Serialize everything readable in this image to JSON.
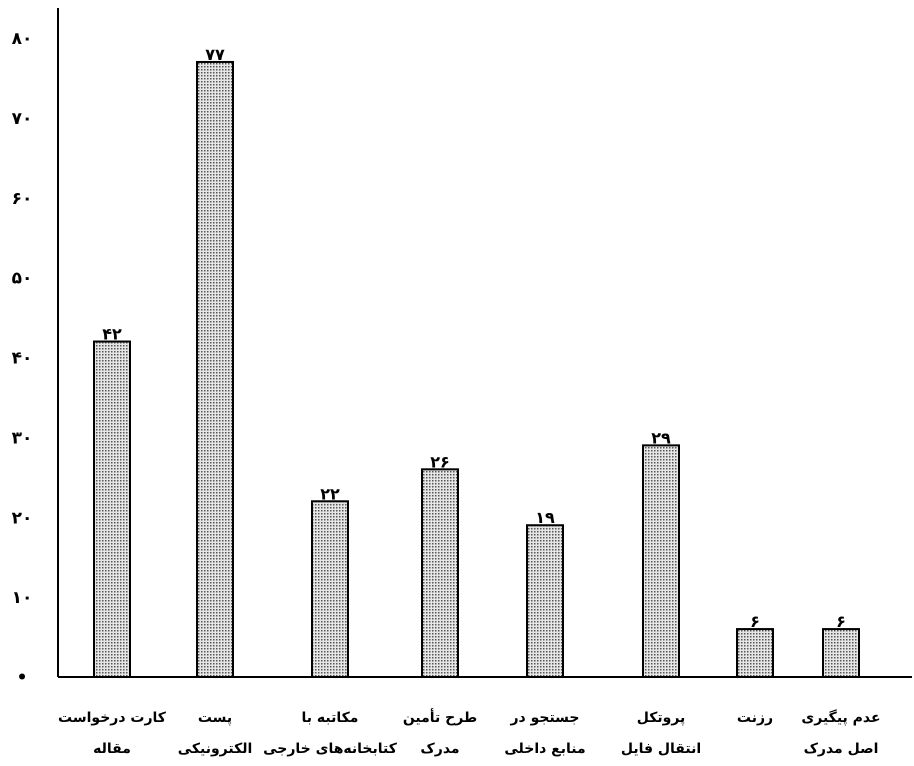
{
  "chart_data": {
    "type": "bar",
    "categories": [
      [
        "کارت درخواست",
        "مقاله"
      ],
      [
        "پست",
        "الکترونیکی"
      ],
      [
        "مکاتبه با",
        "کتابخانه‌های خارجی"
      ],
      [
        "طرح تأمین",
        "مدرک"
      ],
      [
        "جستجو در",
        "منابع داخلی"
      ],
      [
        "پروتکل",
        "انتقال فایل"
      ],
      [
        "رزنت"
      ],
      [
        "عدم پیگیری",
        "اصل مدرک"
      ]
    ],
    "values": [
      42,
      77,
      22,
      26,
      19,
      29,
      6,
      6
    ],
    "value_labels": [
      "۴۲",
      "۷۷",
      "۲۲",
      "۲۶",
      "۱۹",
      "۲۹",
      "۶",
      "۶"
    ],
    "y_ticks": [
      0,
      10,
      20,
      30,
      40,
      50,
      60,
      70,
      80
    ],
    "y_tick_labels": [
      "•",
      "۱۰",
      "۲۰",
      "۳۰",
      "۴۰",
      "۵۰",
      "۶۰",
      "۷۰",
      "۸۰"
    ],
    "ylim": [
      0,
      80
    ],
    "title": "",
    "xlabel": "",
    "ylabel": "",
    "bar_fill": "#b8b8b8",
    "grid": false
  }
}
